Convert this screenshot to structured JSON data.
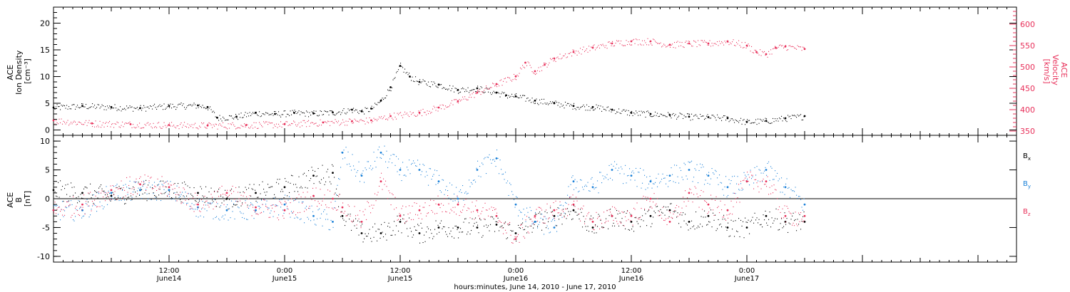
{
  "xaxis": {
    "title": "hours:minutes, June 14, 2010 - June 17, 2010",
    "ticks": [
      {
        "t": 12,
        "time": "12:00",
        "day": "June14"
      },
      {
        "t": 24,
        "time": "0:00",
        "day": "June15"
      },
      {
        "t": 36,
        "time": "12:00",
        "day": "June15"
      },
      {
        "t": 48,
        "time": "0:00",
        "day": "June16"
      },
      {
        "t": 60,
        "time": "12:00",
        "day": "June16"
      },
      {
        "t": 72,
        "time": "0:00",
        "day": "June17"
      }
    ]
  },
  "colors": {
    "black": "#000000",
    "pink": "#e8305a",
    "blue": "#1a80d8"
  },
  "chart_data": [
    {
      "type": "scatter",
      "panel": "top",
      "ylabel_left": [
        "ACE",
        "Ion Density",
        "[cm⁻³]"
      ],
      "ylabel_right": [
        "ACE",
        "Velocity",
        "[km/s]"
      ],
      "ylim_left": [
        -1,
        23
      ],
      "yticks_left": [
        0,
        5,
        10,
        15,
        20
      ],
      "ylim_right": [
        340,
        640
      ],
      "yticks_right": [
        350,
        400,
        450,
        500,
        550,
        600
      ],
      "xlim_hours": [
        0,
        100
      ],
      "series": [
        {
          "color": "black",
          "axis": "left",
          "points": [
            [
              0,
              4.2
            ],
            [
              3,
              4.5
            ],
            [
              6,
              4.3
            ],
            [
              9,
              4.1
            ],
            [
              12,
              4.5
            ],
            [
              15,
              4.6
            ],
            [
              16,
              4.3
            ],
            [
              17,
              2.3
            ],
            [
              19,
              2.5
            ],
            [
              21,
              3.2
            ],
            [
              23,
              3.0
            ],
            [
              25,
              3.2
            ],
            [
              27,
              3.1
            ],
            [
              29,
              3.3
            ],
            [
              31,
              3.8
            ],
            [
              32,
              3.5
            ],
            [
              33,
              4.0
            ],
            [
              34,
              5.5
            ],
            [
              35,
              8.0
            ],
            [
              36,
              12.0
            ],
            [
              37,
              10.0
            ],
            [
              38,
              9.0
            ],
            [
              40,
              8.5
            ],
            [
              42,
              7.5
            ],
            [
              44,
              7.8
            ],
            [
              46,
              7.0
            ],
            [
              47,
              6.5
            ],
            [
              48,
              6.3
            ],
            [
              50,
              5.5
            ],
            [
              52,
              5.0
            ],
            [
              54,
              4.5
            ],
            [
              56,
              4.3
            ],
            [
              58,
              3.8
            ],
            [
              60,
              3.2
            ],
            [
              62,
              3.0
            ],
            [
              64,
              2.8
            ],
            [
              66,
              2.5
            ],
            [
              68,
              2.4
            ],
            [
              70,
              2.2
            ],
            [
              72,
              1.5
            ],
            [
              74,
              1.7
            ],
            [
              76,
              2.2
            ],
            [
              78,
              2.6
            ]
          ]
        },
        {
          "color": "pink",
          "axis": "right",
          "points": [
            [
              0,
              375
            ],
            [
              4,
              368
            ],
            [
              8,
              366
            ],
            [
              12,
              364
            ],
            [
              16,
              363
            ],
            [
              20,
              364
            ],
            [
              24,
              366
            ],
            [
              28,
              370
            ],
            [
              31,
              373
            ],
            [
              33,
              375
            ],
            [
              35,
              385
            ],
            [
              38,
              393
            ],
            [
              40,
              405
            ],
            [
              42,
              420
            ],
            [
              44,
              440
            ],
            [
              46,
              460
            ],
            [
              48,
              478
            ],
            [
              49,
              510
            ],
            [
              50,
              490
            ],
            [
              51,
              505
            ],
            [
              52,
              520
            ],
            [
              54,
              535
            ],
            [
              56,
              545
            ],
            [
              58,
              555
            ],
            [
              60,
              560
            ],
            [
              62,
              560
            ],
            [
              64,
              552
            ],
            [
              66,
              555
            ],
            [
              68,
              555
            ],
            [
              70,
              560
            ],
            [
              72,
              550
            ],
            [
              73,
              535
            ],
            [
              74,
              530
            ],
            [
              75,
              545
            ],
            [
              76,
              548
            ],
            [
              78,
              542
            ]
          ]
        }
      ]
    },
    {
      "type": "scatter",
      "panel": "bottom",
      "ylabel_left": [
        "ACE",
        "B",
        "[nT]"
      ],
      "ylim_left": [
        -11,
        11
      ],
      "yticks_left": [
        -10,
        -5,
        0,
        5,
        10
      ],
      "xlim_hours": [
        0,
        100
      ],
      "series": [
        {
          "name": "B",
          "sub": "x",
          "color": "black",
          "points": [
            [
              0,
              1.5
            ],
            [
              3,
              1.0
            ],
            [
              6,
              0.5
            ],
            [
              9,
              1.5
            ],
            [
              12,
              1.5
            ],
            [
              15,
              1.0
            ],
            [
              18,
              0
            ],
            [
              21,
              1.0
            ],
            [
              24,
              2.0
            ],
            [
              27,
              4.0
            ],
            [
              29,
              4.5
            ],
            [
              30,
              -3.0
            ],
            [
              32,
              -6.0
            ],
            [
              34,
              -6.0
            ],
            [
              36,
              -4.0
            ],
            [
              38,
              -6.0
            ],
            [
              40,
              -5.0
            ],
            [
              42,
              -5.0
            ],
            [
              44,
              -5.0
            ],
            [
              46,
              -4.5
            ],
            [
              48,
              -6.0
            ],
            [
              50,
              -4.0
            ],
            [
              52,
              -3.0
            ],
            [
              54,
              -2.0
            ],
            [
              56,
              -5.0
            ],
            [
              58,
              -3.0
            ],
            [
              60,
              -4.0
            ],
            [
              62,
              -3.0
            ],
            [
              64,
              -2.0
            ],
            [
              66,
              -4.0
            ],
            [
              68,
              -3.0
            ],
            [
              70,
              -5.0
            ],
            [
              72,
              -5.0
            ],
            [
              74,
              -3.0
            ],
            [
              76,
              -4.0
            ],
            [
              78,
              -4.0
            ]
          ]
        },
        {
          "name": "B",
          "sub": "y",
          "color": "blue",
          "points": [
            [
              0,
              -2.0
            ],
            [
              3,
              -2.0
            ],
            [
              6,
              1.0
            ],
            [
              9,
              1.5
            ],
            [
              12,
              1.5
            ],
            [
              15,
              -1.5
            ],
            [
              18,
              -2.0
            ],
            [
              21,
              -2.0
            ],
            [
              24,
              -1.0
            ],
            [
              27,
              -3.0
            ],
            [
              29,
              -4.0
            ],
            [
              30,
              8.0
            ],
            [
              32,
              4.0
            ],
            [
              34,
              8.0
            ],
            [
              36,
              5.0
            ],
            [
              38,
              5.0
            ],
            [
              40,
              3.0
            ],
            [
              42,
              0
            ],
            [
              44,
              5.0
            ],
            [
              46,
              7.0
            ],
            [
              48,
              -1.0
            ],
            [
              50,
              -4.0
            ],
            [
              52,
              -5.0
            ],
            [
              54,
              3.0
            ],
            [
              56,
              2.0
            ],
            [
              58,
              5.0
            ],
            [
              60,
              4.0
            ],
            [
              62,
              3.0
            ],
            [
              64,
              4.0
            ],
            [
              66,
              5.0
            ],
            [
              68,
              4.0
            ],
            [
              70,
              2.0
            ],
            [
              72,
              3.0
            ],
            [
              74,
              5.0
            ],
            [
              76,
              2.0
            ],
            [
              78,
              -1.0
            ]
          ]
        },
        {
          "name": "B",
          "sub": "z",
          "color": "pink",
          "points": [
            [
              0,
              -2.0
            ],
            [
              3,
              -1.0
            ],
            [
              6,
              1.5
            ],
            [
              9,
              2.5
            ],
            [
              12,
              2.0
            ],
            [
              15,
              -1.0
            ],
            [
              18,
              1.0
            ],
            [
              21,
              -1.5
            ],
            [
              24,
              -2.0
            ],
            [
              27,
              0.5
            ],
            [
              29,
              0.0
            ],
            [
              30,
              -1.5
            ],
            [
              32,
              -4.0
            ],
            [
              34,
              3.0
            ],
            [
              36,
              -3.0
            ],
            [
              38,
              -2.0
            ],
            [
              40,
              -1.0
            ],
            [
              42,
              -1.0
            ],
            [
              44,
              -2.0
            ],
            [
              46,
              -3.0
            ],
            [
              48,
              -7.0
            ],
            [
              50,
              -3.0
            ],
            [
              52,
              -2.0
            ],
            [
              54,
              -1.0
            ],
            [
              56,
              -4.0
            ],
            [
              58,
              -3.0
            ],
            [
              60,
              -3.0
            ],
            [
              62,
              0.0
            ],
            [
              64,
              -4.0
            ],
            [
              66,
              1.0
            ],
            [
              68,
              -1.0
            ],
            [
              70,
              -2.0
            ],
            [
              72,
              3.0
            ],
            [
              74,
              3.0
            ],
            [
              76,
              -3.0
            ],
            [
              78,
              -3.0
            ]
          ]
        }
      ]
    }
  ]
}
